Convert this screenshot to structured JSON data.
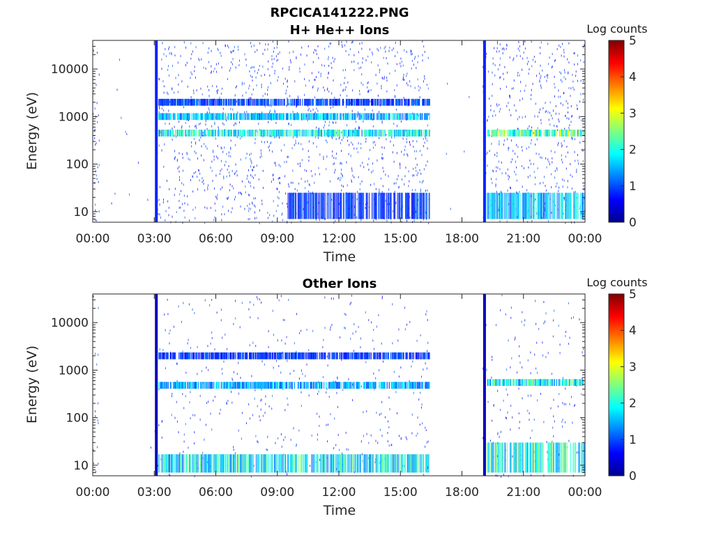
{
  "figure_title": "RPCICA141222.PNG",
  "chart_data": [
    {
      "type": "heatmap",
      "title": "H+ He++ Ions",
      "xlabel": "Time",
      "ylabel": "Energy (eV)",
      "x_ticks": [
        "00:00",
        "03:00",
        "06:00",
        "09:00",
        "12:00",
        "15:00",
        "18:00",
        "21:00",
        "00:00"
      ],
      "x_range_hours": [
        0,
        24
      ],
      "y_scale": "log",
      "y_ticks": [
        10,
        100,
        1000,
        10000
      ],
      "y_tick_labels": [
        "10",
        "100",
        "1000",
        "10000"
      ],
      "ylim": [
        6,
        40000
      ],
      "colorbar": {
        "label": "Log counts",
        "range": [
          0,
          5
        ],
        "ticks": [
          "0",
          "1",
          "2",
          "3",
          "4",
          "5"
        ],
        "colormap": "jet"
      },
      "features": [
        {
          "name": "calibration-sweep",
          "time_hours": 3.1,
          "log_counts": 0.8
        },
        {
          "name": "calibration-sweep",
          "time_hours": 19.1,
          "log_counts": 0.8
        },
        {
          "name": "data-gap",
          "time_hours": [
            16.4,
            19.0
          ]
        },
        {
          "name": "data-gap",
          "time_hours": [
            0.3,
            3.0
          ]
        },
        {
          "name": "energy-band",
          "energy_eV": 450,
          "time_hours": [
            3.2,
            16.4
          ],
          "log_counts": 2.0
        },
        {
          "name": "energy-band",
          "energy_eV": 1000,
          "time_hours": [
            3.2,
            16.4
          ],
          "log_counts": 1.6
        },
        {
          "name": "energy-band",
          "energy_eV": 2000,
          "time_hours": [
            3.2,
            16.4
          ],
          "log_counts": 1.0
        },
        {
          "name": "energy-band",
          "energy_eV": 450,
          "time_hours": [
            19.2,
            24
          ],
          "log_counts": 2.4
        },
        {
          "name": "low-energy-ions",
          "energy_eV": [
            7,
            25
          ],
          "time_hours": [
            9.5,
            16.4
          ],
          "log_counts": 1.0
        },
        {
          "name": "low-energy-ions",
          "energy_eV": [
            7,
            25
          ],
          "time_hours": [
            19.2,
            24
          ],
          "log_counts": 1.8
        }
      ]
    },
    {
      "type": "heatmap",
      "title": "Other Ions",
      "xlabel": "Time",
      "ylabel": "Energy (eV)",
      "x_ticks": [
        "00:00",
        "03:00",
        "06:00",
        "09:00",
        "12:00",
        "15:00",
        "18:00",
        "21:00",
        "00:00"
      ],
      "x_range_hours": [
        0,
        24
      ],
      "y_scale": "log",
      "y_ticks": [
        10,
        100,
        1000,
        10000
      ],
      "y_tick_labels": [
        "10",
        "100",
        "1000",
        "10000"
      ],
      "ylim": [
        6,
        40000
      ],
      "colorbar": {
        "label": "Log counts",
        "range": [
          0,
          5
        ],
        "ticks": [
          "0",
          "1",
          "2",
          "3",
          "4",
          "5"
        ],
        "colormap": "jet"
      },
      "features": [
        {
          "name": "calibration-sweep",
          "time_hours": 3.1,
          "log_counts": 0.3
        },
        {
          "name": "calibration-sweep",
          "time_hours": 19.1,
          "log_counts": 0.3
        },
        {
          "name": "data-gap",
          "time_hours": [
            16.4,
            19.0
          ]
        },
        {
          "name": "data-gap",
          "time_hours": [
            0.3,
            3.0
          ]
        },
        {
          "name": "energy-band",
          "energy_eV": 480,
          "time_hours": [
            3.2,
            16.4
          ],
          "log_counts": 1.5
        },
        {
          "name": "energy-band",
          "energy_eV": 2000,
          "time_hours": [
            3.2,
            16.4
          ],
          "log_counts": 0.9
        },
        {
          "name": "energy-band",
          "energy_eV": 550,
          "time_hours": [
            19.2,
            24
          ],
          "log_counts": 2.0
        },
        {
          "name": "low-energy-ions",
          "energy_eV": [
            7,
            17
          ],
          "time_hours": [
            3.2,
            16.4
          ],
          "log_counts": 2.1
        },
        {
          "name": "low-energy-ions",
          "energy_eV": [
            7,
            30
          ],
          "time_hours": [
            19.2,
            24
          ],
          "log_counts": 2.3
        }
      ]
    }
  ]
}
